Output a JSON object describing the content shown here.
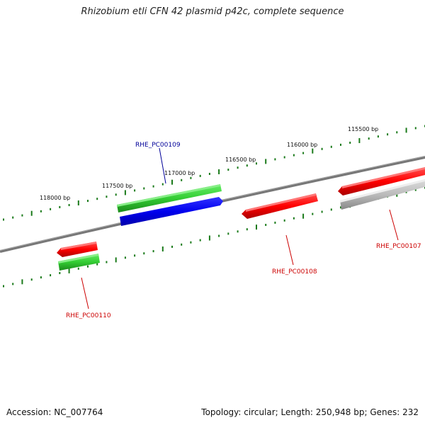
{
  "title": "Rhizobium etli CFN 42 plasmid p42c, complete sequence",
  "accession": "Accession: NC_007764",
  "topology": "Topology: circular; Length: 250,948 bp; Genes: 232",
  "ticks": [
    "115500 bp",
    "116000 bp",
    "116500 bp",
    "117000 bp",
    "117500 bp",
    "118000 bp"
  ],
  "genes": [
    {
      "name": "RHE_PC00107",
      "color": "#cc0000"
    },
    {
      "name": "RHE_PC00108",
      "color": "#cc0000"
    },
    {
      "name": "RHE_PC00109",
      "color": "#000099"
    },
    {
      "name": "RHE_PC00110",
      "color": "#cc0000"
    }
  ],
  "colors": {
    "backbone": "#777777",
    "red": "#ff0000",
    "green": "#33cc33",
    "blue": "#0000ee",
    "grey": "#bbbbbb",
    "tick": "#1a7a1a"
  }
}
